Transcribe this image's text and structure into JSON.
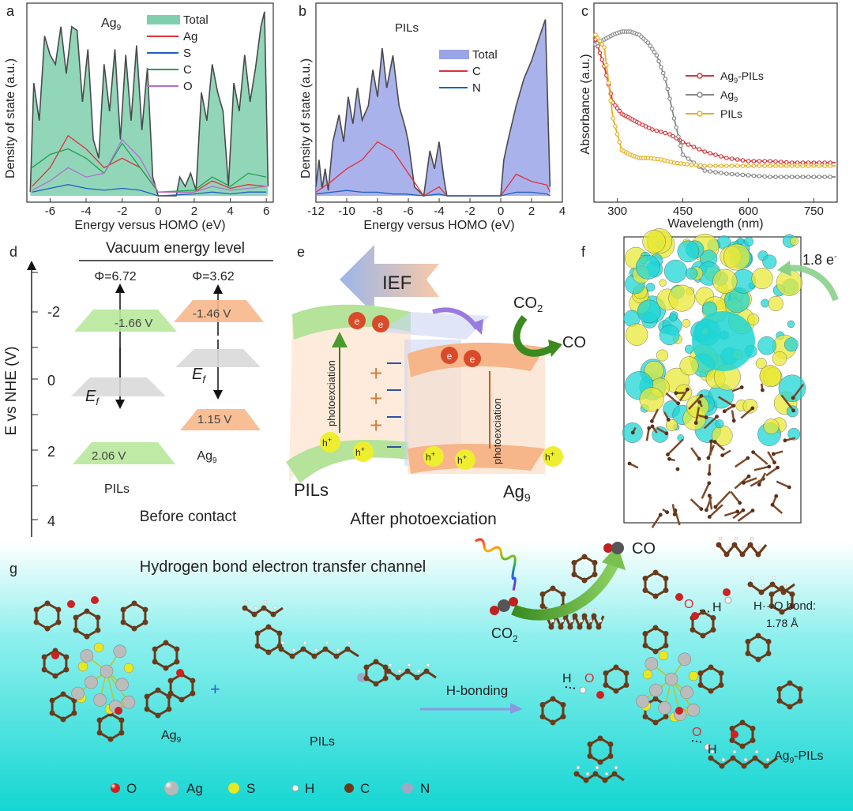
{
  "panel_labels": {
    "a": "a",
    "b": "b",
    "c": "c",
    "d": "d",
    "e": "e",
    "f": "f",
    "g": "g"
  },
  "colors": {
    "total_fill_a": "#7fcfae",
    "total_fill_b": "#9aa4e6",
    "total_line": "#4a4a4a",
    "ag": "#e0303a",
    "s": "#2060c0",
    "c": "#20a050",
    "o": "#b070d0",
    "n": "#2060c0",
    "ag9_pils": "#d8383a",
    "ag9": "#888888",
    "pils": "#e8b020",
    "green_level": "#a9df8a",
    "orange_level": "#f5b583",
    "grey_level": "#d8d8d8",
    "cyan": "#1fd5d5",
    "yellow": "#e8e83a",
    "brown": "#7a4a2a"
  },
  "panel_a": {
    "title": "Ag",
    "title_sub": "9",
    "xlabel": "Energy versus HOMO (eV)",
    "ylabel": "Density of state (a.u.)",
    "xticks": [
      "-6",
      "-4",
      "-2",
      "0",
      "2",
      "4",
      "6"
    ],
    "legend": [
      "Total",
      "Ag",
      "S",
      "C",
      "O"
    ]
  },
  "panel_b": {
    "title": "PILs",
    "xlabel": "Energy versus HOMO (eV)",
    "ylabel": "Density of state (a.u.)",
    "xticks": [
      "-12",
      "-10",
      "-8",
      "-6",
      "-4",
      "-2",
      "0",
      "2",
      "4"
    ],
    "legend": [
      "Total",
      "C",
      "N"
    ]
  },
  "panel_c": {
    "xlabel": "Wavelength (nm)",
    "ylabel": "Absorbance (a.u.)",
    "xticks": [
      "300",
      "450",
      "600",
      "750"
    ],
    "legend": [
      {
        "main": "Ag",
        "sub": "9",
        "rest": "-PILs"
      },
      {
        "main": "Ag",
        "sub": "9",
        "rest": ""
      },
      {
        "main": "PILs",
        "sub": "",
        "rest": ""
      }
    ]
  },
  "chart_data": [
    {
      "type": "area",
      "title": "Ag9",
      "xlabel": "Energy versus HOMO (eV)",
      "ylabel": "Density of state (a.u.)",
      "xlim": [
        -7.2,
        6.3
      ],
      "ylim": [
        0,
        1
      ],
      "series": [
        {
          "name": "Total",
          "x": [
            -7.1,
            -6.9,
            -6.6,
            -6.3,
            -6.0,
            -5.7,
            -5.4,
            -5.1,
            -4.8,
            -4.5,
            -4.2,
            -3.9,
            -3.6,
            -3.3,
            -3.0,
            -2.7,
            -2.4,
            -2.1,
            -1.8,
            -1.5,
            -1.2,
            -0.9,
            -0.6,
            -0.3,
            0.0,
            0.5,
            1.0,
            1.2,
            1.5,
            1.8,
            2.1,
            2.4,
            2.7,
            3.0,
            3.3,
            3.6,
            3.9,
            4.2,
            4.5,
            4.8,
            5.1,
            5.4,
            5.7,
            5.9,
            6.1
          ],
          "y": [
            0.02,
            0.6,
            0.4,
            0.85,
            0.75,
            0.7,
            0.9,
            0.65,
            0.9,
            0.88,
            0.5,
            0.78,
            0.3,
            0.2,
            0.7,
            0.45,
            0.78,
            0.3,
            0.75,
            0.4,
            0.8,
            0.35,
            0.68,
            0.1,
            0.0,
            0.0,
            0.0,
            0.1,
            0.05,
            0.12,
            0.03,
            0.55,
            0.4,
            0.7,
            0.55,
            0.45,
            0.05,
            0.6,
            0.45,
            0.75,
            0.5,
            0.68,
            0.9,
            0.98,
            0.05
          ]
        },
        {
          "name": "Ag",
          "x": [
            -7,
            -6,
            -5,
            -4,
            -3,
            -2,
            -1,
            0,
            2,
            3,
            4,
            5,
            6
          ],
          "y": [
            0.05,
            0.15,
            0.32,
            0.25,
            0.15,
            0.2,
            0.15,
            0.02,
            0.02,
            0.08,
            0.04,
            0.06,
            0.05
          ]
        },
        {
          "name": "S",
          "x": [
            -7,
            -6,
            -5,
            -4,
            -3,
            -2,
            -1,
            0,
            2,
            3,
            4,
            5,
            6
          ],
          "y": [
            0.02,
            0.04,
            0.06,
            0.04,
            0.03,
            0.04,
            0.03,
            0.0,
            0.01,
            0.02,
            0.01,
            0.02,
            0.02
          ]
        },
        {
          "name": "C",
          "x": [
            -7,
            -6,
            -5,
            -4,
            -3,
            -2,
            -1,
            0,
            2,
            3,
            4,
            5,
            6
          ],
          "y": [
            0.15,
            0.22,
            0.25,
            0.2,
            0.12,
            0.28,
            0.15,
            0.02,
            0.03,
            0.1,
            0.05,
            0.12,
            0.1
          ]
        },
        {
          "name": "O",
          "x": [
            -7,
            -6,
            -5,
            -4,
            -3,
            -2,
            -1,
            0,
            2,
            3,
            4,
            5,
            6
          ],
          "y": [
            0.03,
            0.08,
            0.15,
            0.1,
            0.12,
            0.3,
            0.2,
            0.02,
            0.02,
            0.05,
            0.03,
            0.04,
            0.05
          ]
        }
      ]
    },
    {
      "type": "area",
      "title": "PILs",
      "xlabel": "Energy versus HOMO (eV)",
      "ylabel": "Density of state (a.u.)",
      "xlim": [
        -12,
        4
      ],
      "ylim": [
        0,
        1
      ],
      "series": [
        {
          "name": "Total",
          "x": [
            -12.0,
            -11.8,
            -11.6,
            -11.4,
            -11.2,
            -10.9,
            -10.5,
            -10.2,
            -9.9,
            -9.6,
            -9.3,
            -9.0,
            -8.6,
            -8.3,
            -8.0,
            -7.7,
            -7.4,
            -7.0,
            -6.6,
            -6.2,
            -6.0,
            -5.6,
            -5.0,
            -4.6,
            -4.3,
            -4.0,
            -3.7,
            -3.5,
            0.0,
            0.2,
            0.5,
            1.0,
            1.5,
            2.0,
            2.5,
            2.9,
            3.2
          ],
          "y": [
            0.05,
            0.2,
            0.04,
            0.15,
            0.03,
            0.3,
            0.45,
            0.3,
            0.55,
            0.4,
            0.6,
            0.42,
            0.5,
            0.7,
            0.55,
            0.82,
            0.6,
            0.78,
            0.5,
            0.38,
            0.3,
            0.05,
            0.0,
            0.25,
            0.15,
            0.3,
            0.1,
            0.0,
            0.0,
            0.2,
            0.32,
            0.5,
            0.65,
            0.75,
            0.88,
            0.98,
            0.05
          ]
        },
        {
          "name": "C",
          "x": [
            -12,
            -11,
            -10,
            -9,
            -8,
            -7,
            -6.2,
            -5,
            -4,
            -3.5,
            0,
            1,
            2,
            3,
            3.2
          ],
          "y": [
            0.02,
            0.08,
            0.15,
            0.2,
            0.3,
            0.25,
            0.15,
            0.0,
            0.05,
            0.0,
            0.0,
            0.12,
            0.08,
            0.06,
            0.02
          ]
        },
        {
          "name": "N",
          "x": [
            -12,
            -11,
            -10,
            -9,
            -8,
            -7,
            -6.2,
            -5,
            -4,
            -3.5,
            0,
            1,
            2,
            3,
            3.2
          ],
          "y": [
            0.01,
            0.02,
            0.03,
            0.02,
            0.02,
            0.01,
            0.01,
            0.0,
            0.01,
            0.0,
            0.0,
            0.02,
            0.02,
            0.01,
            0.0
          ]
        }
      ]
    },
    {
      "type": "line",
      "xlabel": "Wavelength (nm)",
      "ylabel": "Absorbance (a.u.)",
      "xlim": [
        250,
        800
      ],
      "ylim": [
        0,
        1
      ],
      "series": [
        {
          "name": "Ag9-PILs",
          "x": [
            250,
            270,
            290,
            310,
            330,
            350,
            380,
            420,
            450,
            500,
            550,
            600,
            650,
            700,
            750,
            800
          ],
          "y": [
            0.95,
            0.78,
            0.55,
            0.48,
            0.45,
            0.42,
            0.38,
            0.35,
            0.3,
            0.24,
            0.2,
            0.18,
            0.18,
            0.17,
            0.17,
            0.17
          ]
        },
        {
          "name": "Ag9",
          "x": [
            250,
            270,
            290,
            310,
            330,
            350,
            370,
            390,
            410,
            430,
            450,
            500,
            550,
            600,
            650,
            700,
            750,
            800
          ],
          "y": [
            0.92,
            0.95,
            0.98,
            1.0,
            1.0,
            0.98,
            0.93,
            0.85,
            0.7,
            0.45,
            0.22,
            0.12,
            0.1,
            0.09,
            0.08,
            0.08,
            0.08,
            0.08
          ]
        },
        {
          "name": "PILs",
          "x": [
            250,
            270,
            290,
            310,
            330,
            350,
            370,
            400,
            430,
            460,
            500,
            550,
            600,
            650,
            700,
            750,
            800
          ],
          "y": [
            0.98,
            0.9,
            0.45,
            0.25,
            0.22,
            0.2,
            0.2,
            0.19,
            0.17,
            0.16,
            0.15,
            0.15,
            0.15,
            0.15,
            0.15,
            0.15,
            0.15
          ]
        }
      ]
    }
  ],
  "panel_d": {
    "title": "Vacuum energy level",
    "ylabel": "E vs NHE (V)",
    "yticks": [
      "-2",
      "0",
      "2",
      "4"
    ],
    "phi_pils": "Φ=6.72",
    "phi_ag9": "Φ=3.62",
    "pils_cb": "-1.66 V",
    "pils_vb": "2.06 V",
    "ag9_cb": "-1.46 V",
    "ag9_vb": "1.15 V",
    "ef_main": "E",
    "ef_sub": "f",
    "pils_label": "PILs",
    "ag9_label": "Ag",
    "ag9_sub": "9",
    "caption": "Before contact"
  },
  "panel_e": {
    "ief": "IEF",
    "co2": "CO",
    "co2_sub": "2",
    "co": "CO",
    "electron": "e",
    "hole": "h",
    "hole_sup": "+",
    "photoexc": "photoexciation",
    "pils_label": "PILs",
    "ag9_label": "Ag",
    "ag9_sub": "9",
    "caption": "After photoexciation"
  },
  "panel_f": {
    "charge": "1.8 e",
    "charge_sup": "-"
  },
  "panel_g": {
    "title": "Hydrogen bond electron transfer channel",
    "plus": "+",
    "ag9_label": "Ag",
    "ag9_sub": "9",
    "pils_label": "PILs",
    "hbond_arrow": "H-bonding",
    "co": "CO",
    "co2": "CO",
    "co2_sub": "2",
    "h_o_bond": "H···O bond:",
    "bond_len": "1.78 Å",
    "atom_o": "O",
    "atom_h": "H",
    "product_label_main": "Ag",
    "product_label_sub": "9",
    "product_label_rest": "-PILs",
    "legend": [
      {
        "symbol": "O",
        "color": "#d02020"
      },
      {
        "symbol": "Ag",
        "color": "#b8b8b8"
      },
      {
        "symbol": "S",
        "color": "#e8e820"
      },
      {
        "symbol": "H",
        "color": "#f0f0f0"
      },
      {
        "symbol": "C",
        "color": "#6a3a1a"
      },
      {
        "symbol": "N",
        "color": "#a0a8c8"
      }
    ]
  }
}
